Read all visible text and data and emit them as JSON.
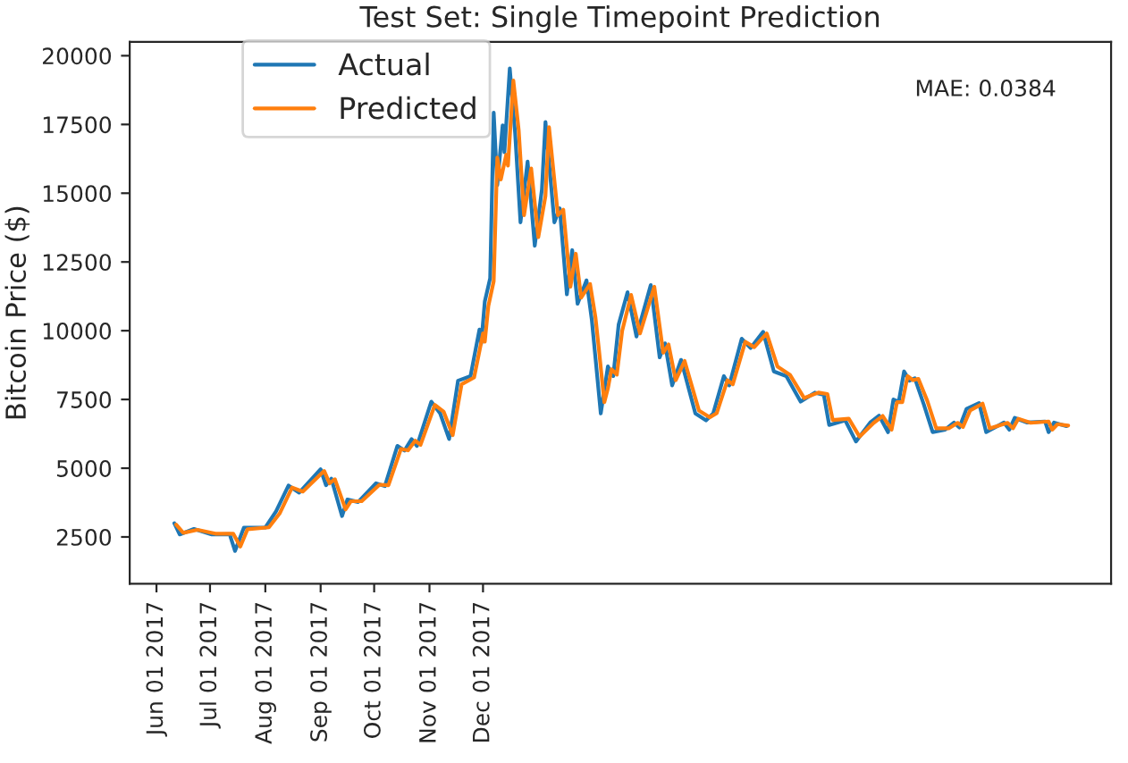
{
  "chart_data": {
    "type": "line",
    "title": "Test Set: Single Timepoint Prediction",
    "ylabel": "Bitcoin Price ($)",
    "annotations": [
      "MAE: 0.0384"
    ],
    "xlim": [
      "2017-05-17",
      "2018-11-18"
    ],
    "ylim": [
      800,
      20500
    ],
    "xticks": [
      {
        "value": "2017-06-01",
        "label": "Jun 01 2017"
      },
      {
        "value": "2017-07-01",
        "label": "Jul 01 2017"
      },
      {
        "value": "2017-08-01",
        "label": "Aug 01 2017"
      },
      {
        "value": "2017-09-01",
        "label": "Sep 01 2017"
      },
      {
        "value": "2017-10-01",
        "label": "Oct 01 2017"
      },
      {
        "value": "2017-11-01",
        "label": "Nov 01 2017"
      },
      {
        "value": "2017-12-01",
        "label": "Dec 01 2017"
      }
    ],
    "yticks": [
      2500,
      5000,
      7500,
      10000,
      12500,
      15000,
      17500,
      20000
    ],
    "legend": "top left",
    "grid": false,
    "series": [
      {
        "name": "Actual",
        "color": "#1f77b4",
        "x": [
          "2017-06-11",
          "2017-06-14",
          "2017-06-22",
          "2017-07-02",
          "2017-07-12",
          "2017-07-15",
          "2017-07-20",
          "2017-08-01",
          "2017-08-07",
          "2017-08-14",
          "2017-08-20",
          "2017-09-01",
          "2017-09-04",
          "2017-09-07",
          "2017-09-13",
          "2017-09-16",
          "2017-09-22",
          "2017-10-02",
          "2017-10-07",
          "2017-10-14",
          "2017-10-18",
          "2017-10-22",
          "2017-10-25",
          "2017-11-02",
          "2017-11-07",
          "2017-11-12",
          "2017-11-17",
          "2017-11-24",
          "2017-11-29",
          "2017-11-30",
          "2017-12-02",
          "2017-12-05",
          "2017-12-07",
          "2017-12-09",
          "2017-12-12",
          "2017-12-13",
          "2017-12-16",
          "2017-12-19",
          "2017-12-22",
          "2017-12-26",
          "2017-12-30",
          "2018-01-03",
          "2018-01-05",
          "2018-01-10",
          "2018-01-13",
          "2018-01-17",
          "2018-01-20",
          "2018-01-23",
          "2018-01-28",
          "2018-01-31",
          "2018-02-02",
          "2018-02-05",
          "2018-02-07",
          "2018-02-09",
          "2018-02-12",
          "2018-02-15",
          "2018-02-20",
          "2018-02-25",
          "2018-03-05",
          "2018-03-10",
          "2018-03-13",
          "2018-03-17",
          "2018-03-22",
          "2018-03-30",
          "2018-04-05",
          "2018-04-09",
          "2018-04-15",
          "2018-04-18",
          "2018-04-25",
          "2018-04-30",
          "2018-05-07",
          "2018-05-13",
          "2018-05-20",
          "2018-05-28",
          "2018-06-05",
          "2018-06-10",
          "2018-06-13",
          "2018-06-22",
          "2018-06-28",
          "2018-07-06",
          "2018-07-11",
          "2018-07-16",
          "2018-07-19",
          "2018-07-22",
          "2018-07-25",
          "2018-07-28",
          "2018-07-31",
          "2018-08-05",
          "2018-08-10",
          "2018-08-17",
          "2018-08-22",
          "2018-08-25",
          "2018-08-29",
          "2018-09-05",
          "2018-09-09",
          "2018-09-19",
          "2018-09-22",
          "2018-09-25",
          "2018-10-02",
          "2018-10-12",
          "2018-10-14",
          "2018-10-17",
          "2018-10-24"
        ],
        "values": [
          3000,
          2590,
          2790,
          2590,
          2600,
          1990,
          2840,
          2840,
          3430,
          4370,
          4110,
          4960,
          4380,
          4620,
          3260,
          3860,
          3770,
          4450,
          4350,
          5810,
          5640,
          6060,
          5810,
          7420,
          6990,
          6060,
          8180,
          8350,
          10040,
          9530,
          11060,
          11910,
          17930,
          15300,
          17470,
          16490,
          19540,
          17180,
          13940,
          16150,
          13090,
          15130,
          17590,
          13940,
          14450,
          11320,
          12930,
          10980,
          11830,
          10380,
          9030,
          6990,
          7840,
          8700,
          8350,
          10220,
          11400,
          9790,
          11660,
          9030,
          9540,
          8010,
          8940,
          6990,
          6740,
          6990,
          8350,
          8010,
          9710,
          9370,
          9960,
          8520,
          8350,
          7420,
          7750,
          7670,
          6570,
          6740,
          5970,
          6660,
          6910,
          6310,
          7500,
          7420,
          8520,
          8180,
          8270,
          7330,
          6310,
          6400,
          6660,
          6480,
          7160,
          7370,
          6310,
          6660,
          6400,
          6830,
          6660,
          6700,
          6310,
          6660,
          6530
        ]
      },
      {
        "name": "Predicted",
        "color": "#ff7f0e",
        "x": [
          "2017-06-12",
          "2017-06-16",
          "2017-06-24",
          "2017-07-04",
          "2017-07-14",
          "2017-07-18",
          "2017-07-22",
          "2017-08-03",
          "2017-08-09",
          "2017-08-16",
          "2017-08-22",
          "2017-09-03",
          "2017-09-06",
          "2017-09-09",
          "2017-09-15",
          "2017-09-18",
          "2017-09-24",
          "2017-10-04",
          "2017-10-09",
          "2017-10-16",
          "2017-10-20",
          "2017-10-24",
          "2017-10-27",
          "2017-11-04",
          "2017-11-09",
          "2017-11-14",
          "2017-11-19",
          "2017-11-26",
          "2017-12-01",
          "2017-12-02",
          "2017-12-04",
          "2017-12-07",
          "2017-12-09",
          "2017-12-11",
          "2017-12-14",
          "2017-12-15",
          "2017-12-18",
          "2017-12-21",
          "2017-12-24",
          "2017-12-28",
          "2018-01-01",
          "2018-01-05",
          "2018-01-07",
          "2018-01-12",
          "2018-01-15",
          "2018-01-19",
          "2018-01-22",
          "2018-01-25",
          "2018-01-30",
          "2018-02-02",
          "2018-02-04",
          "2018-02-07",
          "2018-02-09",
          "2018-02-11",
          "2018-02-14",
          "2018-02-17",
          "2018-02-22",
          "2018-02-27",
          "2018-03-07",
          "2018-03-12",
          "2018-03-15",
          "2018-03-19",
          "2018-03-24",
          "2018-04-01",
          "2018-04-07",
          "2018-04-11",
          "2018-04-17",
          "2018-04-20",
          "2018-04-27",
          "2018-05-02",
          "2018-05-09",
          "2018-05-15",
          "2018-05-22",
          "2018-05-30",
          "2018-06-07",
          "2018-06-12",
          "2018-06-15",
          "2018-06-24",
          "2018-06-30",
          "2018-07-08",
          "2018-07-13",
          "2018-07-18",
          "2018-07-21",
          "2018-07-24",
          "2018-07-27",
          "2018-07-30",
          "2018-08-02",
          "2018-08-07",
          "2018-08-12",
          "2018-08-19",
          "2018-08-24",
          "2018-08-27",
          "2018-08-31",
          "2018-09-07",
          "2018-09-11",
          "2018-09-21",
          "2018-09-24",
          "2018-09-27",
          "2018-10-04",
          "2018-10-14",
          "2018-10-16",
          "2018-10-19",
          "2018-10-25"
        ],
        "values": [
          2950,
          2650,
          2760,
          2620,
          2620,
          2150,
          2780,
          2850,
          3350,
          4300,
          4150,
          4900,
          4450,
          4600,
          3500,
          3800,
          3800,
          4400,
          4380,
          5700,
          5650,
          6000,
          5850,
          7300,
          7050,
          6200,
          8050,
          8300,
          9900,
          9600,
          10900,
          11800,
          16300,
          15500,
          16400,
          16000,
          19100,
          17300,
          14200,
          15900,
          13400,
          14900,
          17400,
          14200,
          14400,
          11600,
          12800,
          11200,
          11700,
          10500,
          9300,
          7400,
          7900,
          8600,
          8400,
          10000,
          11300,
          9900,
          11600,
          9200,
          9500,
          8200,
          8900,
          7100,
          6850,
          7000,
          8200,
          8050,
          9600,
          9400,
          9900,
          8700,
          8400,
          7550,
          7750,
          7700,
          6750,
          6800,
          6150,
          6650,
          6900,
          6400,
          7400,
          7400,
          8350,
          8200,
          8250,
          7450,
          6450,
          6450,
          6650,
          6500,
          7100,
          7350,
          6450,
          6650,
          6450,
          6800,
          6650,
          6700,
          6400,
          6600,
          6550
        ]
      }
    ]
  }
}
